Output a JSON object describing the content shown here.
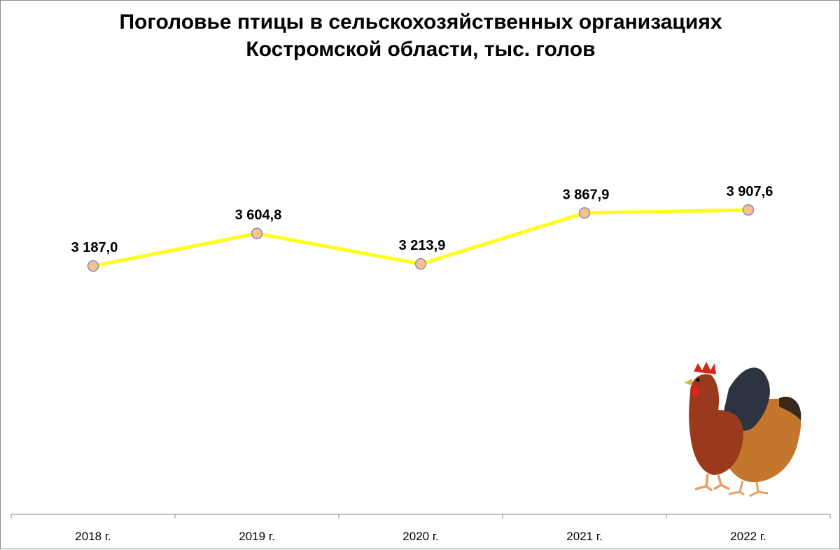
{
  "chart_data": {
    "type": "line",
    "title_lines": [
      "Поголовье птицы в сельскохозяйственных организациях",
      "Костромской области, тыс. голов"
    ],
    "categories": [
      "2018 г.",
      "2019 г.",
      "2020 г.",
      "2021 г.",
      "2022 г."
    ],
    "values": [
      3187.0,
      3604.8,
      3213.9,
      3867.9,
      3907.6
    ],
    "data_labels": [
      "3 187,0",
      "3 604,8",
      "3 213,9",
      "3 867,9",
      "3 907,6"
    ],
    "xlabel": "",
    "ylabel": "",
    "ylim": [
      0,
      6000
    ],
    "grid": false,
    "legend": "none",
    "colors": {
      "line": "#ffff1a",
      "marker_fill": "#f7c08c",
      "marker_stroke": "#7f8fbf",
      "axis": "#8c8c8c"
    }
  },
  "decoration": {
    "illustration": "rooster-and-hen-icon"
  }
}
